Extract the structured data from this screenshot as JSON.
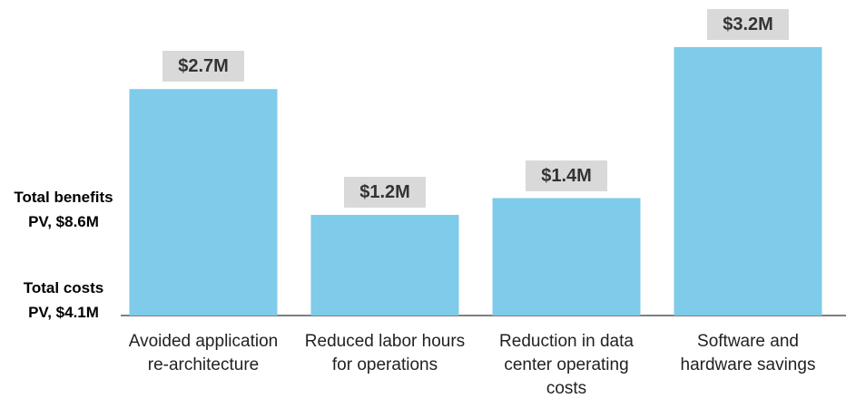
{
  "chart_data": {
    "type": "bar",
    "categories": [
      "Avoided application re-architecture",
      "Reduced labor hours for operations",
      "Reduction in data center operating costs",
      "Software and hardware savings"
    ],
    "values": [
      2.7,
      1.2,
      1.4,
      3.2
    ],
    "value_labels": [
      "$2.7M",
      "$1.2M",
      "$1.4M",
      "$3.2M"
    ],
    "color": "#7fcbea",
    "annotations": [
      "Total benefits PV, $8.6M",
      "Total costs PV, $4.1M"
    ]
  }
}
